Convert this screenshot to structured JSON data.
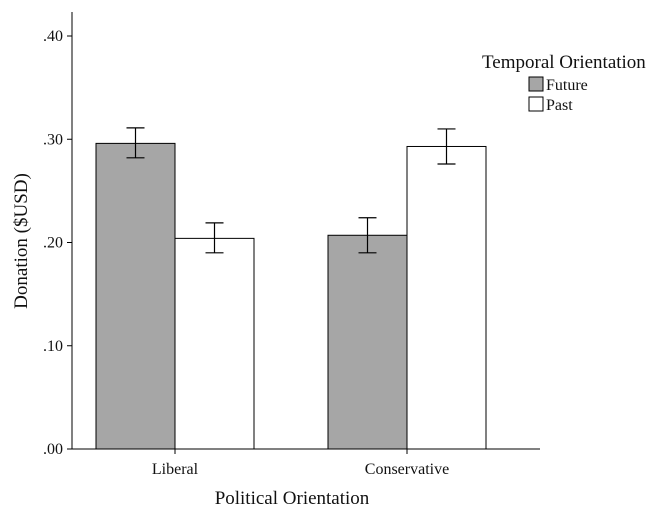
{
  "chart_data": {
    "type": "bar",
    "title": "",
    "xlabel": "Political Orientation",
    "ylabel": "Donation ($USD)",
    "ylim": [
      0,
      0.4
    ],
    "yticks": [
      {
        "value": 0.0,
        "label": ".00"
      },
      {
        "value": 0.1,
        "label": ".10"
      },
      {
        "value": 0.2,
        "label": ".20"
      },
      {
        "value": 0.3,
        "label": ".30"
      },
      {
        "value": 0.4,
        "label": ".40"
      }
    ],
    "categories": [
      "Liberal",
      "Conservative"
    ],
    "series": [
      {
        "name": "Future",
        "color": "#a6a6a6",
        "values": [
          0.296,
          0.207
        ],
        "error_low": [
          0.282,
          0.19
        ],
        "error_high": [
          0.311,
          0.224
        ]
      },
      {
        "name": "Past",
        "color": "#ffffff",
        "values": [
          0.204,
          0.293
        ],
        "error_low": [
          0.19,
          0.276
        ],
        "error_high": [
          0.219,
          0.31
        ]
      }
    ],
    "legend": {
      "title": "Temporal Orientation",
      "position": "top-right"
    },
    "grid": false,
    "error_bars": true
  }
}
